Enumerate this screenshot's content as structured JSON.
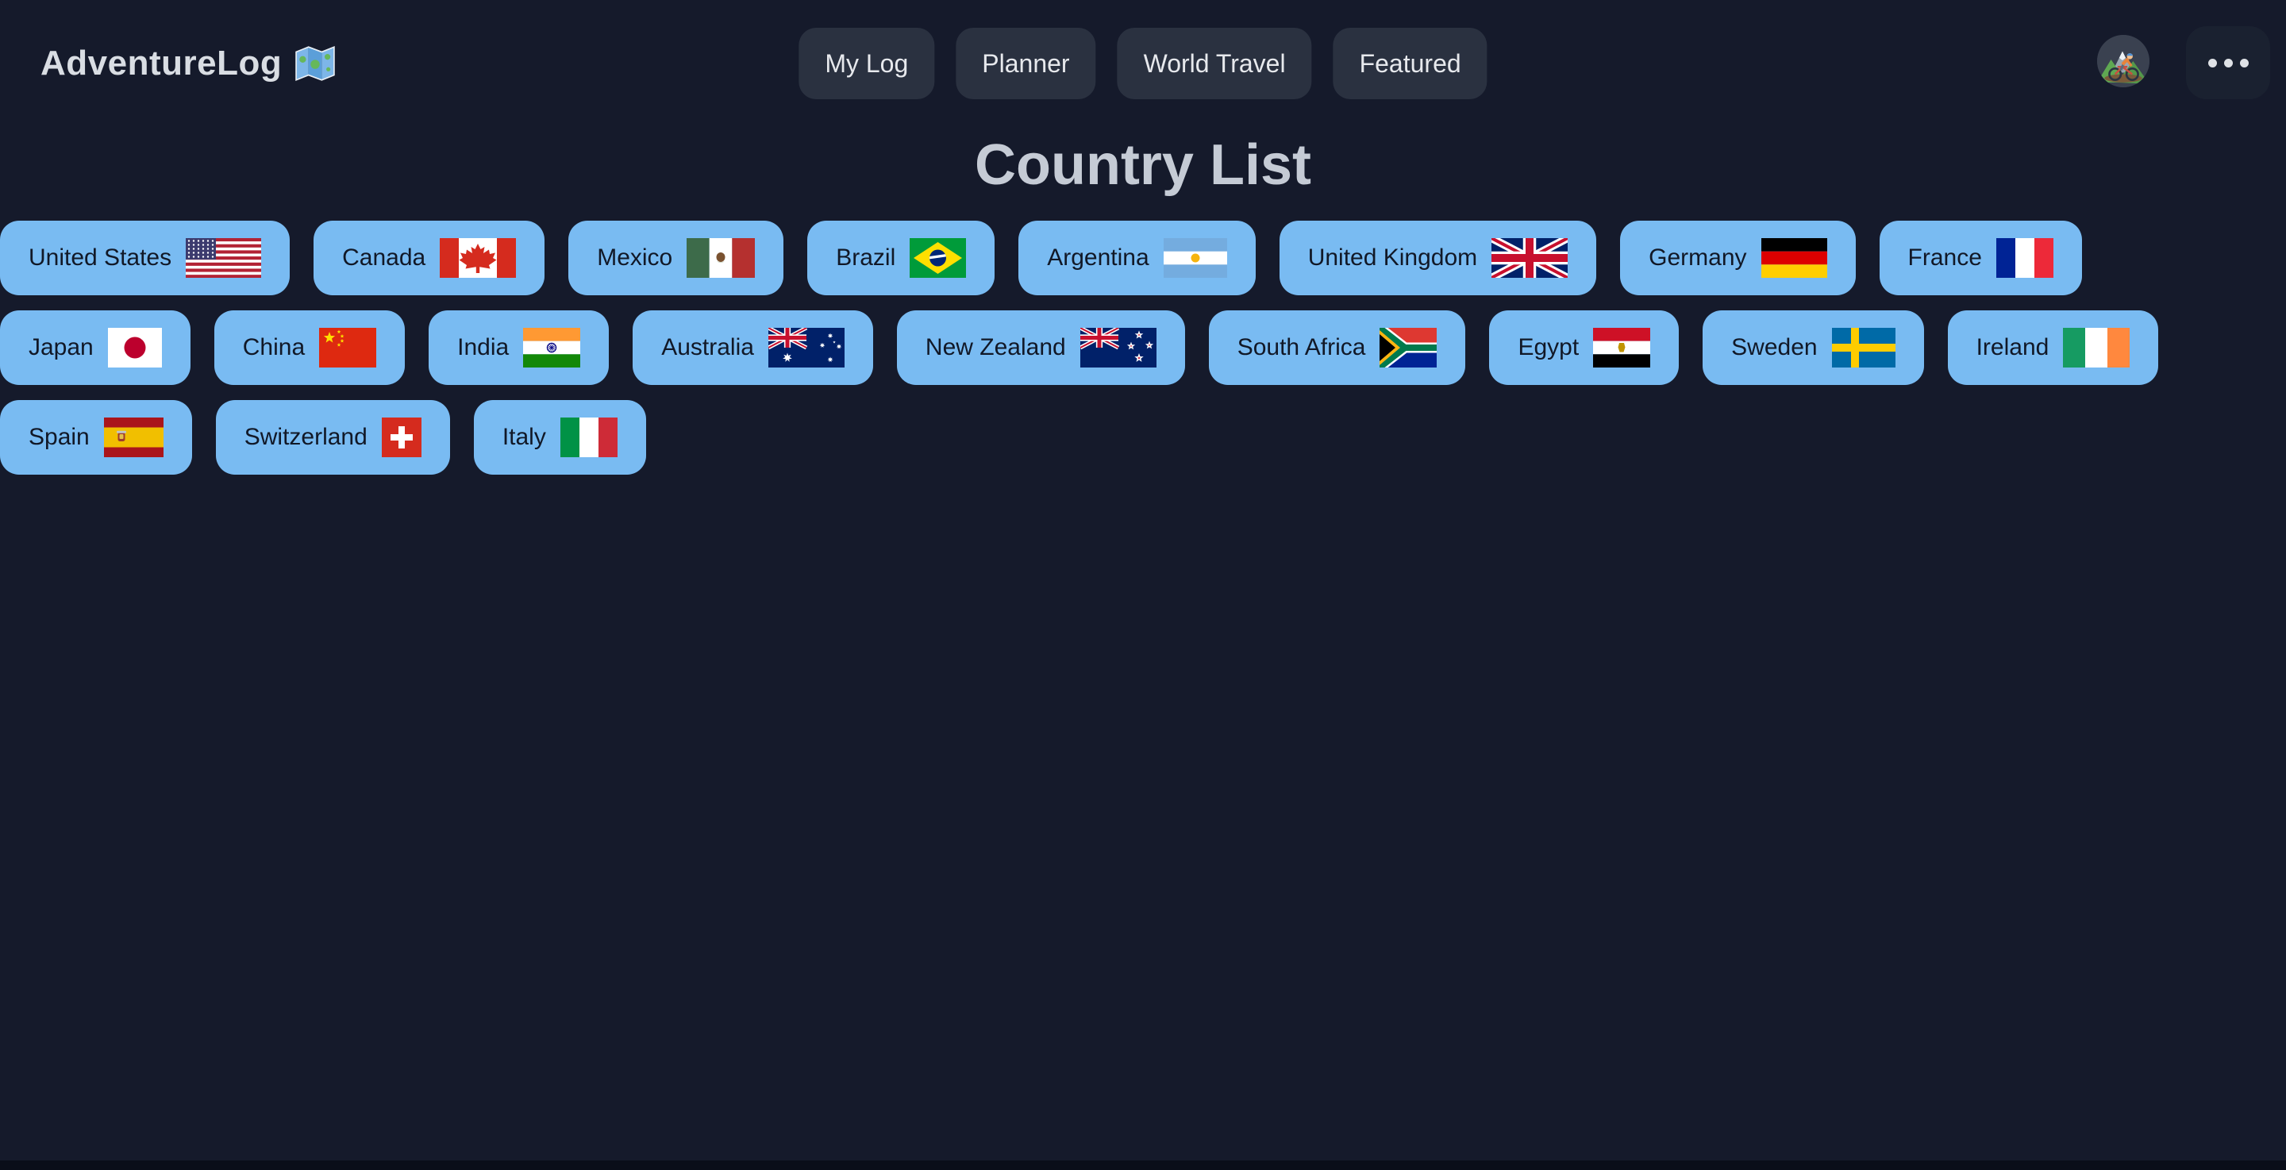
{
  "app": {
    "name": "AdventureLog",
    "logo_icon": "world-map-icon"
  },
  "nav": {
    "tabs": [
      {
        "label": "My Log"
      },
      {
        "label": "Planner"
      },
      {
        "label": "World Travel"
      },
      {
        "label": "Featured"
      }
    ]
  },
  "user": {
    "avatar_icon": "mountain-biker-icon"
  },
  "header": {
    "more_button_icon": "ellipsis-icon"
  },
  "page": {
    "title": "Country List"
  },
  "countries": {
    "rows": [
      [
        {
          "name": "United States",
          "flag": "us"
        },
        {
          "name": "Canada",
          "flag": "ca"
        },
        {
          "name": "Mexico",
          "flag": "mx"
        },
        {
          "name": "Brazil",
          "flag": "br"
        },
        {
          "name": "Argentina",
          "flag": "ar"
        },
        {
          "name": "United Kingdom",
          "flag": "gb"
        },
        {
          "name": "Germany",
          "flag": "de"
        },
        {
          "name": "France",
          "flag": "fr"
        }
      ],
      [
        {
          "name": "Japan",
          "flag": "jp"
        },
        {
          "name": "China",
          "flag": "cn"
        },
        {
          "name": "India",
          "flag": "in"
        },
        {
          "name": "Australia",
          "flag": "au"
        },
        {
          "name": "New Zealand",
          "flag": "nz"
        },
        {
          "name": "South Africa",
          "flag": "za"
        },
        {
          "name": "Egypt",
          "flag": "eg"
        },
        {
          "name": "Sweden",
          "flag": "se"
        },
        {
          "name": "Ireland",
          "flag": "ie"
        }
      ],
      [
        {
          "name": "Spain",
          "flag": "es"
        },
        {
          "name": "Switzerland",
          "flag": "ch"
        },
        {
          "name": "Italy",
          "flag": "it"
        }
      ]
    ]
  },
  "colors": {
    "background": "#151a2b",
    "country_button": "#79bbf2",
    "country_button_text": "#111827",
    "nav_button": "#2a3140",
    "nav_button_text": "#e7e9ed",
    "more_button": "#1a2130",
    "page_title_text": "#c5cbd5",
    "logo_text": "#d9dde3",
    "avatar_background": "#3a4150",
    "bottom_bar": "#0a0e19"
  }
}
